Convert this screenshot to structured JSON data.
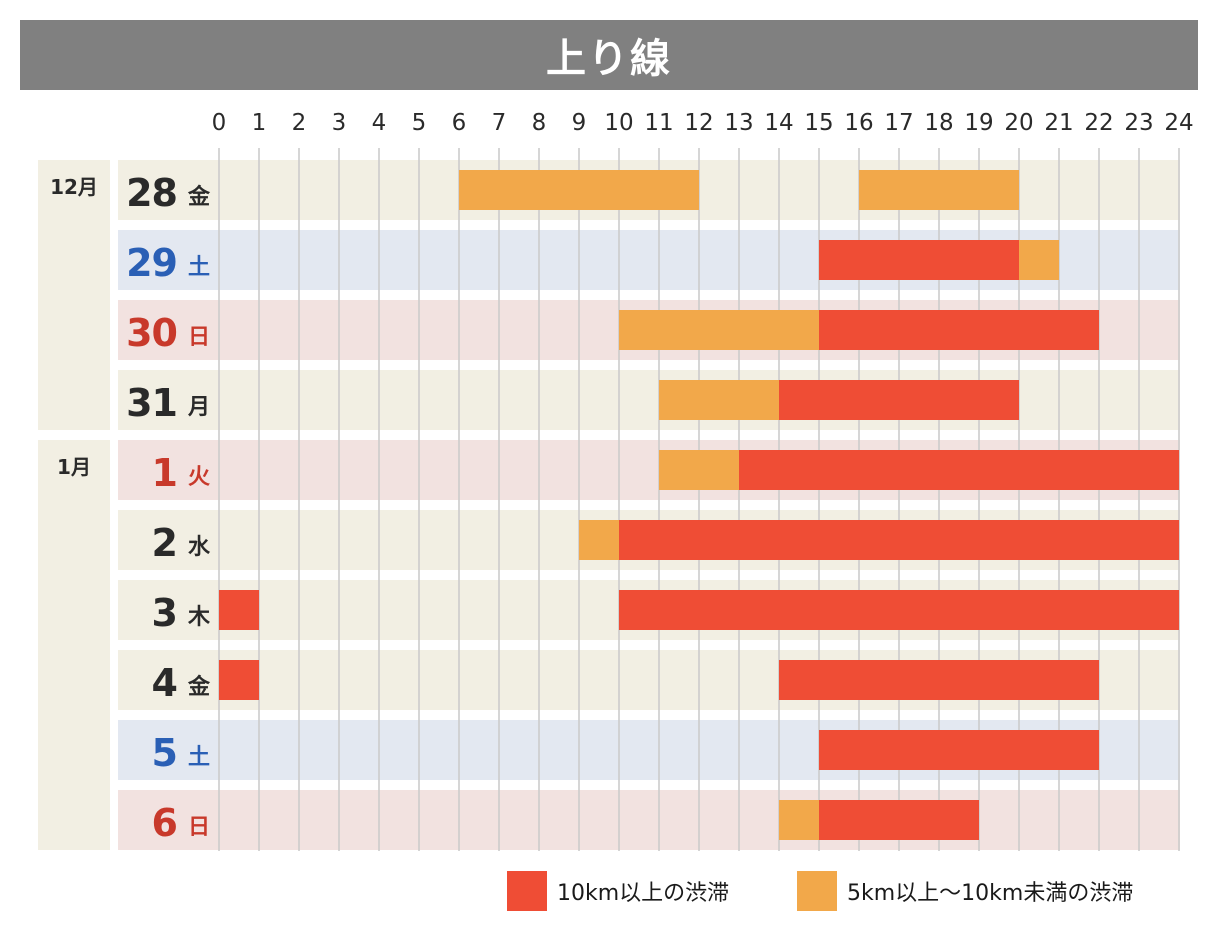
{
  "title": "上り線",
  "colors": {
    "heavy": "#ef4d35",
    "light": "#f2a84a",
    "row_weekday": "#f2efe3",
    "row_saturday": "#e3e8f1",
    "row_holiday": "#f2e2e0",
    "month_band": "#f2efe3",
    "grid": "#c9c9c9",
    "text_weekday": "#2a2a2a",
    "text_saturday": "#2a5fb5",
    "text_holiday": "#c8392b"
  },
  "legend": {
    "heavy_label": "10km以上の渋滞",
    "light_label": "5km以上〜10km未満の渋滞"
  },
  "chart_data": {
    "type": "gantt",
    "title": "上り線",
    "x_ticks": [
      "0",
      "1",
      "2",
      "3",
      "4",
      "5",
      "6",
      "7",
      "8",
      "9",
      "10",
      "11",
      "12",
      "13",
      "14",
      "15",
      "16",
      "17",
      "18",
      "19",
      "20",
      "21",
      "22",
      "23",
      "24"
    ],
    "xlim": [
      0,
      24
    ],
    "groups": [
      {
        "label": "12月",
        "first_row": 0,
        "row_count": 4
      },
      {
        "label": "1月",
        "first_row": 4,
        "row_count": 6
      }
    ],
    "rows": [
      {
        "day": "28",
        "weekday": "金",
        "type": "weekday",
        "segments": [
          {
            "start": 6,
            "end": 12,
            "level": "light"
          },
          {
            "start": 16,
            "end": 20,
            "level": "light"
          }
        ]
      },
      {
        "day": "29",
        "weekday": "土",
        "type": "saturday",
        "segments": [
          {
            "start": 15,
            "end": 20,
            "level": "heavy"
          },
          {
            "start": 20,
            "end": 21,
            "level": "light"
          }
        ]
      },
      {
        "day": "30",
        "weekday": "日",
        "type": "holiday",
        "segments": [
          {
            "start": 10,
            "end": 15,
            "level": "light"
          },
          {
            "start": 15,
            "end": 22,
            "level": "heavy"
          }
        ]
      },
      {
        "day": "31",
        "weekday": "月",
        "type": "weekday",
        "segments": [
          {
            "start": 11,
            "end": 14,
            "level": "light"
          },
          {
            "start": 14,
            "end": 20,
            "level": "heavy"
          }
        ]
      },
      {
        "day": "1",
        "weekday": "火",
        "type": "holiday",
        "segments": [
          {
            "start": 11,
            "end": 13,
            "level": "light"
          },
          {
            "start": 13,
            "end": 24,
            "level": "heavy"
          }
        ]
      },
      {
        "day": "2",
        "weekday": "水",
        "type": "weekday",
        "segments": [
          {
            "start": 9,
            "end": 10,
            "level": "light"
          },
          {
            "start": 10,
            "end": 24,
            "level": "heavy"
          }
        ]
      },
      {
        "day": "3",
        "weekday": "木",
        "type": "weekday",
        "segments": [
          {
            "start": 0,
            "end": 1,
            "level": "heavy"
          },
          {
            "start": 10,
            "end": 24,
            "level": "heavy"
          }
        ]
      },
      {
        "day": "4",
        "weekday": "金",
        "type": "weekday",
        "segments": [
          {
            "start": 0,
            "end": 1,
            "level": "heavy"
          },
          {
            "start": 14,
            "end": 22,
            "level": "heavy"
          }
        ]
      },
      {
        "day": "5",
        "weekday": "土",
        "type": "saturday",
        "segments": [
          {
            "start": 15,
            "end": 22,
            "level": "heavy"
          }
        ]
      },
      {
        "day": "6",
        "weekday": "日",
        "type": "holiday",
        "segments": [
          {
            "start": 14,
            "end": 15,
            "level": "light"
          },
          {
            "start": 15,
            "end": 19,
            "level": "heavy"
          }
        ]
      }
    ]
  }
}
